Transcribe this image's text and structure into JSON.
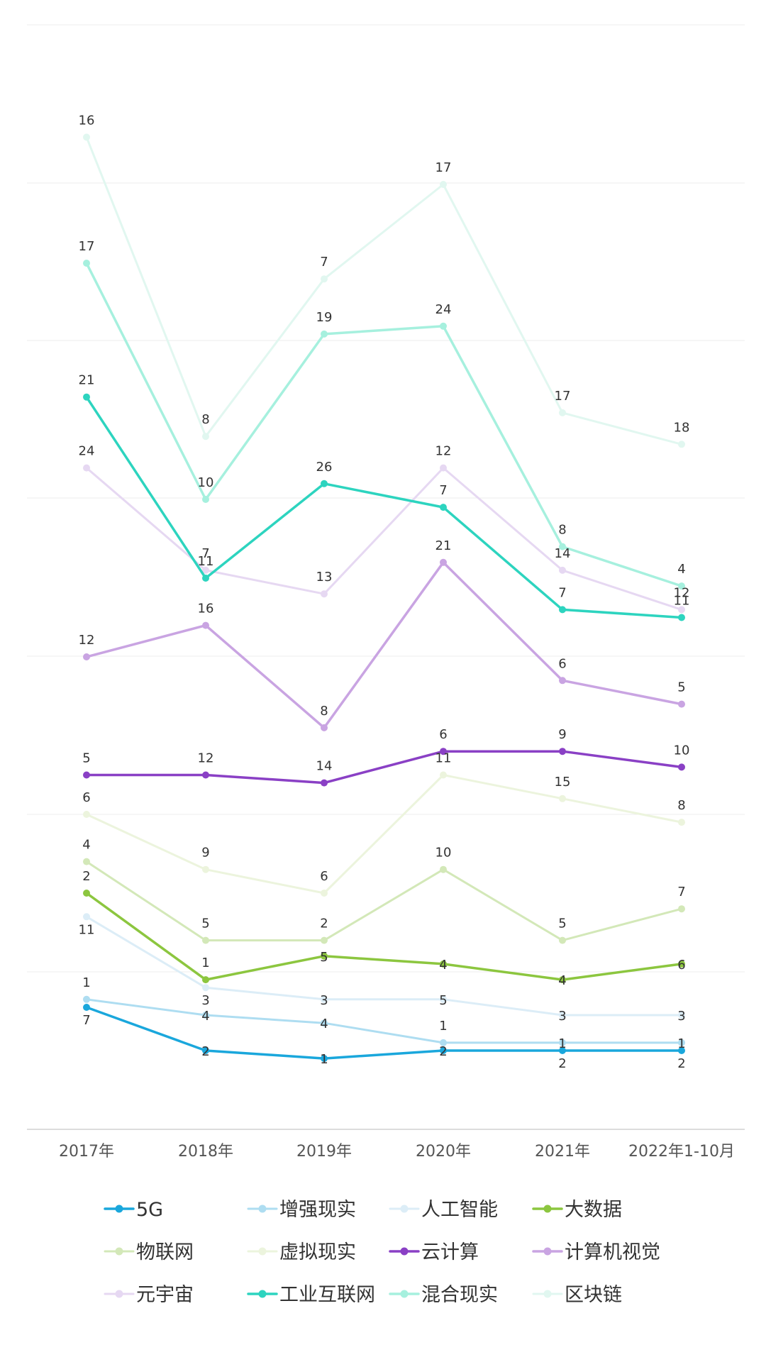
{
  "chart_data": {
    "type": "line",
    "categories": [
      "2017年",
      "2018年",
      "2019年",
      "2020年",
      "2021年",
      "2022年1-10月"
    ],
    "grid": true,
    "legend_position": "bottom",
    "series": [
      {
        "name": "5G",
        "color": "#1aa7dc",
        "width": 3.5,
        "pos": [
          15.5,
          10.0,
          9.0,
          10.0,
          10.0,
          10.0
        ],
        "labels": [
          "7",
          "2",
          "1",
          "2",
          "2",
          "2"
        ],
        "label_side": [
          "below",
          "on",
          "on",
          "on",
          "below",
          "below"
        ]
      },
      {
        "name": "增强现实",
        "color": "#aeddf1",
        "width": 3,
        "pos": [
          16.5,
          14.5,
          13.5,
          11.0,
          11.0,
          11.0
        ],
        "labels": [
          "1",
          "4",
          "4",
          "1",
          "1",
          "1"
        ],
        "label_side": [
          "above",
          "on",
          "on",
          "above",
          "on",
          "on"
        ]
      },
      {
        "name": "人工智能",
        "color": "#dcedf7",
        "width": 3,
        "pos": [
          27.0,
          18.0,
          16.5,
          16.5,
          14.5,
          14.5
        ],
        "labels": [
          "11",
          "3",
          "3",
          "5",
          "3",
          "3"
        ],
        "label_side": [
          "below",
          "below",
          "on",
          "on",
          "on",
          "on"
        ]
      },
      {
        "name": "大数据",
        "color": "#8cc63f",
        "width": 3.5,
        "pos": [
          30.0,
          19.0,
          22.0,
          21.0,
          19.0,
          21.0
        ],
        "labels": [
          "2",
          "1",
          "5",
          "4",
          "4",
          "6"
        ],
        "label_side": [
          "above",
          "above",
          "on",
          "on",
          "on",
          "on"
        ]
      },
      {
        "name": "物联网",
        "color": "#d3e8b8",
        "width": 3,
        "pos": [
          34.0,
          24.0,
          24.0,
          33.0,
          24.0,
          28.0
        ],
        "labels": [
          "4",
          "5",
          "2",
          "10",
          "5",
          "7"
        ],
        "label_side": [
          "above",
          "above",
          "above",
          "above",
          "above",
          "above"
        ]
      },
      {
        "name": "虚拟现实",
        "color": "#ecf4dd",
        "width": 3,
        "pos": [
          40.0,
          33.0,
          30.0,
          45.0,
          42.0,
          39.0
        ],
        "labels": [
          "6",
          "9",
          "6",
          "11",
          "15",
          "8"
        ],
        "label_side": [
          "above",
          "above",
          "above",
          "above",
          "above",
          "above"
        ]
      },
      {
        "name": "云计算",
        "color": "#8a40c5",
        "width": 3.5,
        "pos": [
          45.0,
          45.0,
          44.0,
          48.0,
          48.0,
          46.0
        ],
        "labels": [
          "5",
          "12",
          "14",
          "6",
          "9",
          "10"
        ],
        "label_side": [
          "above",
          "above",
          "above",
          "above",
          "above",
          "above"
        ]
      },
      {
        "name": "计算机视觉",
        "color": "#c9a4e2",
        "width": 3.5,
        "pos": [
          60.0,
          64.0,
          51.0,
          72.0,
          57.0,
          54.0
        ],
        "labels": [
          "12",
          "16",
          "8",
          "21",
          "6",
          "5"
        ],
        "label_side": [
          "above",
          "above",
          "above",
          "above",
          "above",
          "above"
        ]
      },
      {
        "name": "元宇宙",
        "color": "#e6d8f2",
        "width": 3,
        "pos": [
          84.0,
          71.0,
          68.0,
          84.0,
          71.0,
          66.0
        ],
        "labels": [
          "24",
          "7",
          "13",
          "12",
          "14",
          "12"
        ],
        "label_side": [
          "above",
          "above",
          "above",
          "above",
          "above",
          "above"
        ]
      },
      {
        "name": "工业互联网",
        "color": "#2dd4bf",
        "width": 3.5,
        "pos": [
          93.0,
          70.0,
          82.0,
          79.0,
          66.0,
          65.0
        ],
        "labels": [
          "21",
          "11",
          "26",
          "7",
          "7",
          "11"
        ],
        "label_side": [
          "above",
          "above",
          "above",
          "above",
          "above",
          "above"
        ]
      },
      {
        "name": "混合现实",
        "color": "#a6f0de",
        "width": 3.5,
        "pos": [
          110.0,
          80.0,
          101.0,
          102.0,
          74.0,
          69.0
        ],
        "labels": [
          "17",
          "10",
          "19",
          "24",
          "8",
          "4"
        ],
        "label_side": [
          "above",
          "above",
          "above",
          "above",
          "above",
          "above"
        ]
      },
      {
        "name": "区块链",
        "color": "#e1f7f0",
        "width": 3,
        "pos": [
          126.0,
          88.0,
          108.0,
          120.0,
          91.0,
          87.0
        ],
        "labels": [
          "16",
          "8",
          "7",
          "17",
          "17",
          "18"
        ],
        "label_side": [
          "above",
          "above",
          "above",
          "above",
          "above",
          "above"
        ]
      }
    ]
  }
}
